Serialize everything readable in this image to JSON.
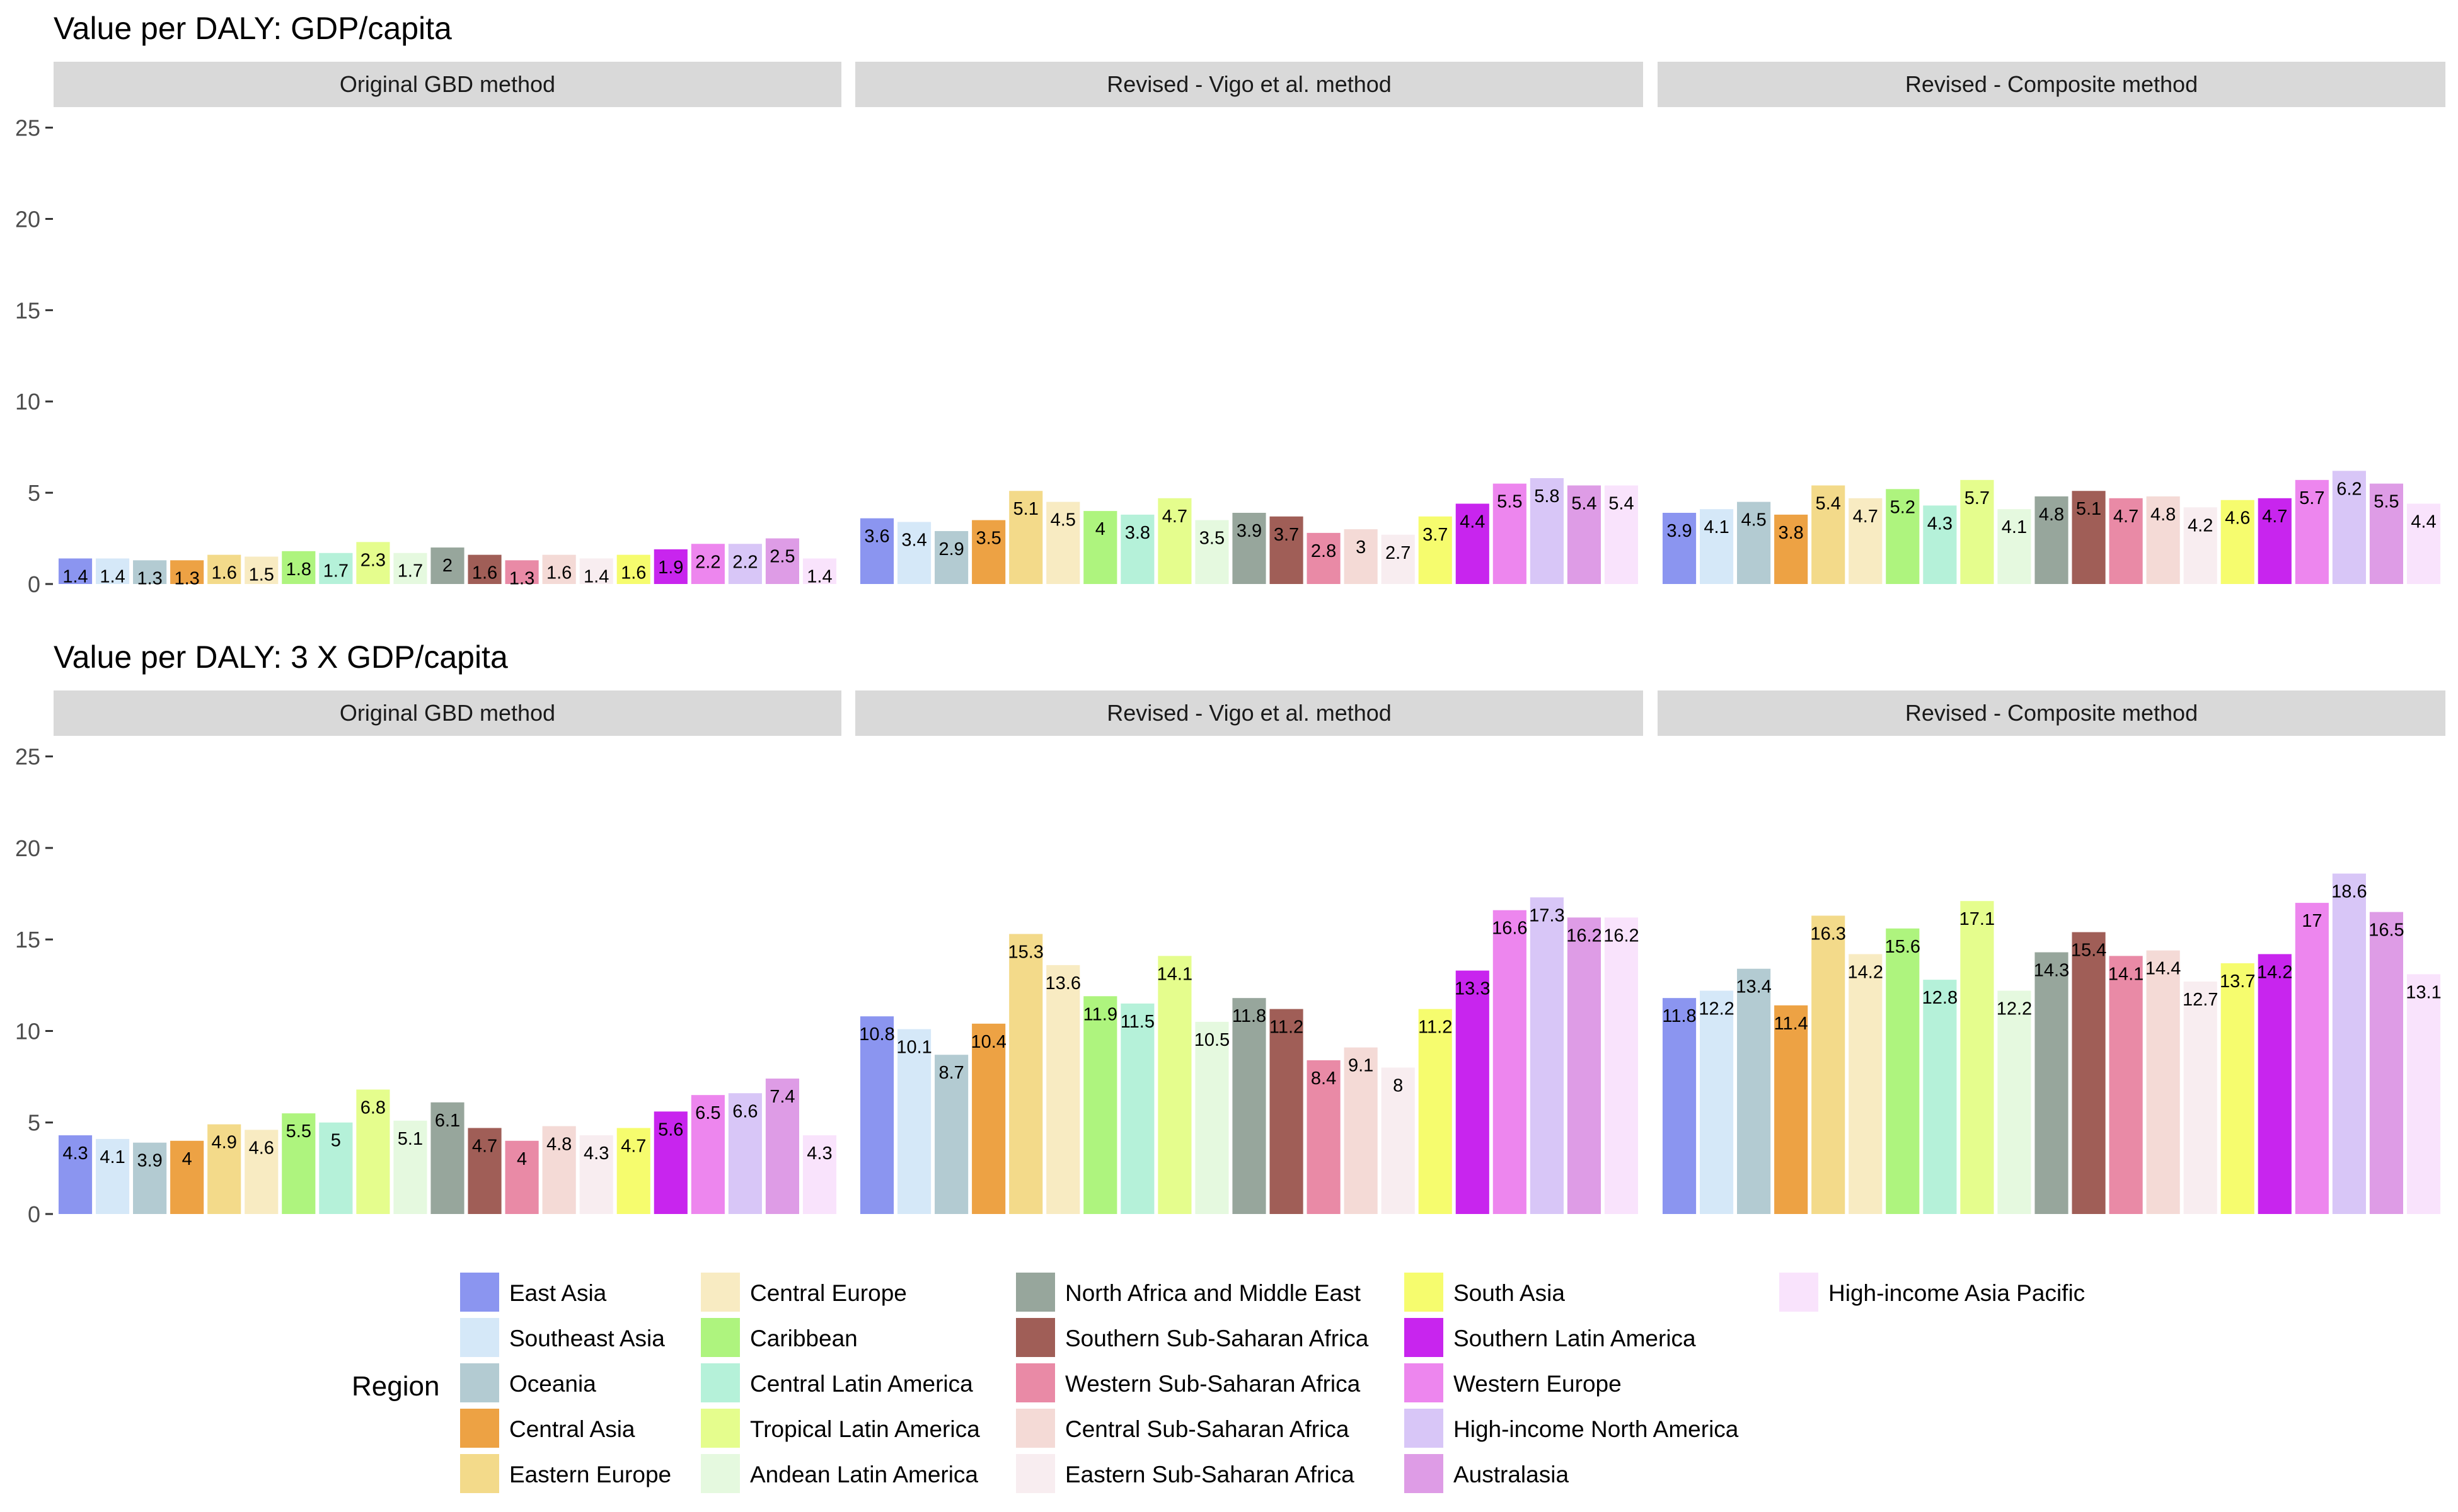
{
  "legend": {
    "title": "Region",
    "items": [
      {
        "name": "East Asia",
        "color": "#8B95F0"
      },
      {
        "name": "Southeast Asia",
        "color": "#D5E8F8"
      },
      {
        "name": "Oceania",
        "color": "#B3CBD2"
      },
      {
        "name": "Central Asia",
        "color": "#EDA244"
      },
      {
        "name": "Eastern Europe",
        "color": "#F3DA8A"
      },
      {
        "name": "Central Europe",
        "color": "#F8EBC2"
      },
      {
        "name": "Caribbean",
        "color": "#AEF47E"
      },
      {
        "name": "Central Latin America",
        "color": "#B5F1D9"
      },
      {
        "name": "Tropical Latin America",
        "color": "#E5FD8D"
      },
      {
        "name": "Andean Latin America",
        "color": "#E5F9DF"
      },
      {
        "name": "North Africa and Middle East",
        "color": "#97A69C"
      },
      {
        "name": "Southern Sub-Saharan Africa",
        "color": "#A05E57"
      },
      {
        "name": "Western Sub-Saharan Africa",
        "color": "#E98AA6"
      },
      {
        "name": "Central Sub-Saharan Africa",
        "color": "#F4DAD6"
      },
      {
        "name": "Eastern Sub-Saharan Africa",
        "color": "#F8EDF0"
      },
      {
        "name": "South Asia",
        "color": "#F6FC6E"
      },
      {
        "name": "Southern Latin America",
        "color": "#C825EE"
      },
      {
        "name": "Western Europe",
        "color": "#ED86EE"
      },
      {
        "name": "High-income North America",
        "color": "#D8C6F7"
      },
      {
        "name": "Australasia",
        "color": "#DE9CE6"
      },
      {
        "name": "High-income Asia Pacific",
        "color": "#F9E3FC"
      }
    ]
  },
  "chart_data": [
    {
      "type": "bar",
      "title": "Value per DALY: GDP/capita",
      "ylim": [
        0,
        25
      ],
      "yticks": [
        0,
        5,
        10,
        15,
        20,
        25
      ],
      "categories": [
        "East Asia",
        "Southeast Asia",
        "Oceania",
        "Central Asia",
        "Eastern Europe",
        "Central Europe",
        "Caribbean",
        "Central Latin America",
        "Tropical Latin America",
        "Andean Latin America",
        "North Africa and Middle East",
        "Southern Sub-Saharan Africa",
        "Western Sub-Saharan Africa",
        "Central Sub-Saharan Africa",
        "Eastern Sub-Saharan Africa",
        "South Asia",
        "Southern Latin America",
        "Western Europe",
        "High-income North America",
        "Australasia",
        "High-income Asia Pacific"
      ],
      "panels": [
        {
          "label": "Original GBD method",
          "values": [
            1.4,
            1.4,
            1.3,
            1.3,
            1.6,
            1.5,
            1.8,
            1.7,
            2.3,
            1.7,
            2,
            1.6,
            1.3,
            1.6,
            1.4,
            1.6,
            1.9,
            2.2,
            2.2,
            2.5,
            1.4
          ]
        },
        {
          "label": "Revised - Vigo et al. method",
          "values": [
            3.6,
            3.4,
            2.9,
            3.5,
            5.1,
            4.5,
            4,
            3.8,
            4.7,
            3.5,
            3.9,
            3.7,
            2.8,
            3,
            2.7,
            3.7,
            4.4,
            5.5,
            5.8,
            5.4,
            5.4
          ]
        },
        {
          "label": "Revised - Composite method",
          "values": [
            3.9,
            4.1,
            4.5,
            3.8,
            5.4,
            4.7,
            5.2,
            4.3,
            5.7,
            4.1,
            4.8,
            5.1,
            4.7,
            4.8,
            4.2,
            4.6,
            4.7,
            5.7,
            6.2,
            5.5,
            4.4
          ]
        }
      ]
    },
    {
      "type": "bar",
      "title": "Value per DALY: 3 X GDP/capita",
      "ylim": [
        0,
        25
      ],
      "yticks": [
        0,
        5,
        10,
        15,
        20,
        25
      ],
      "categories": [
        "East Asia",
        "Southeast Asia",
        "Oceania",
        "Central Asia",
        "Eastern Europe",
        "Central Europe",
        "Caribbean",
        "Central Latin America",
        "Tropical Latin America",
        "Andean Latin America",
        "North Africa and Middle East",
        "Southern Sub-Saharan Africa",
        "Western Sub-Saharan Africa",
        "Central Sub-Saharan Africa",
        "Eastern Sub-Saharan Africa",
        "South Asia",
        "Southern Latin America",
        "Western Europe",
        "High-income North America",
        "Australasia",
        "High-income Asia Pacific"
      ],
      "panels": [
        {
          "label": "Original GBD method",
          "values": [
            4.3,
            4.1,
            3.9,
            4,
            4.9,
            4.6,
            5.5,
            5,
            6.8,
            5.1,
            6.1,
            4.7,
            4,
            4.8,
            4.3,
            4.7,
            5.6,
            6.5,
            6.6,
            7.4,
            4.3
          ]
        },
        {
          "label": "Revised - Vigo et al. method",
          "values": [
            10.8,
            10.1,
            8.7,
            10.4,
            15.3,
            13.6,
            11.9,
            11.5,
            14.1,
            10.5,
            11.8,
            11.2,
            8.4,
            9.1,
            8,
            11.2,
            13.3,
            16.6,
            17.3,
            16.2,
            16.2
          ]
        },
        {
          "label": "Revised - Composite method",
          "values": [
            11.8,
            12.2,
            13.4,
            11.4,
            16.3,
            14.2,
            15.6,
            12.8,
            17.1,
            12.2,
            14.3,
            15.4,
            14.1,
            14.4,
            12.7,
            13.7,
            14.2,
            17,
            18.6,
            16.5,
            13.1
          ]
        }
      ]
    }
  ]
}
